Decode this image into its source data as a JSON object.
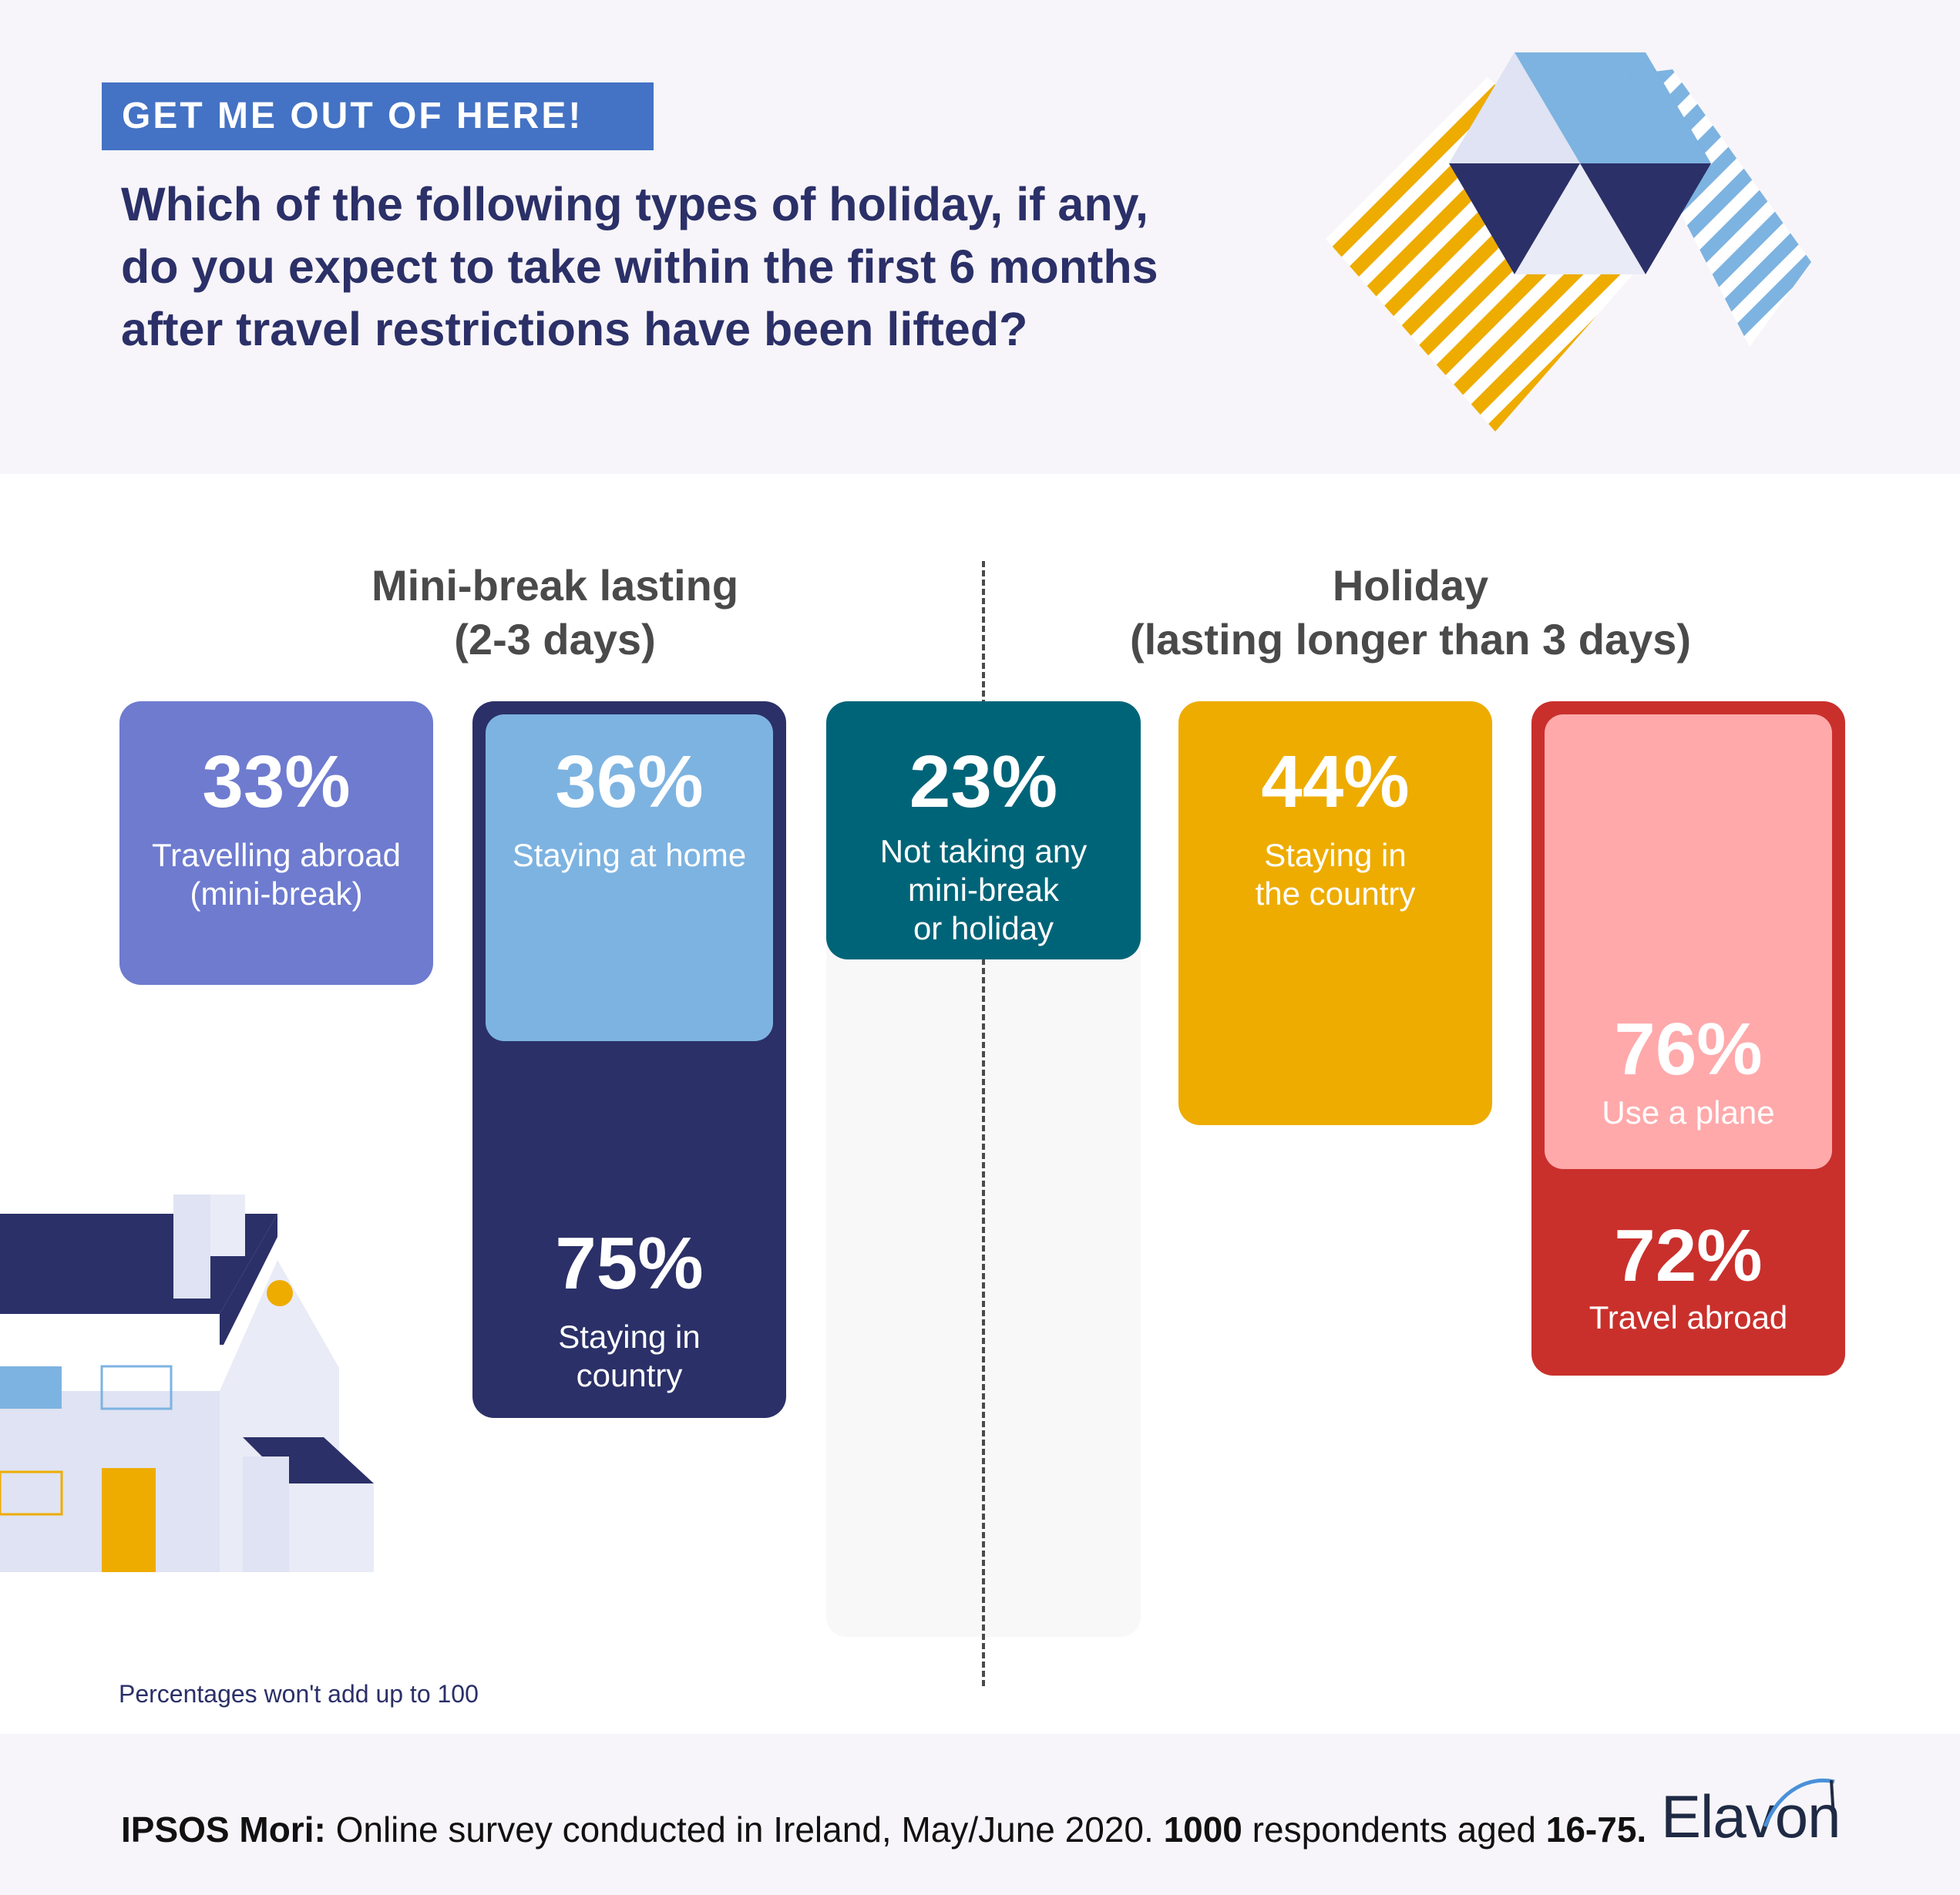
{
  "tag": "GET ME OUT OF HERE!",
  "question": "Which of the following types of holiday, if any, do you expect to take within the first 6 months after travel restrictions have been lifted?",
  "groups": {
    "mini_line1": "Mini-break lasting",
    "mini_line2": "(2-3 days)",
    "holiday_line1": "Holiday",
    "holiday_line2": "(lasting longer than 3 days)"
  },
  "cards": {
    "abroad_mini": {
      "pct": "33%",
      "line1": "Travelling abroad",
      "line2": "(mini-break)"
    },
    "home": {
      "pct": "36%",
      "line1": "Staying at home"
    },
    "country_mini": {
      "pct": "75%",
      "line1": "Staying in",
      "line2": "country"
    },
    "none": {
      "pct": "23%",
      "line1": "Not taking any",
      "line2": "mini-break",
      "line3": "or holiday"
    },
    "country_holiday": {
      "pct": "44%",
      "line1": "Staying in",
      "line2": "the country"
    },
    "plane": {
      "pct": "76%",
      "line1": "Use a plane"
    },
    "abroad_holiday": {
      "pct": "72%",
      "line1": "Travel abroad"
    }
  },
  "footnote": "Percentages won't add up to 100",
  "source": {
    "org": "IPSOS Mori:",
    "text1": " Online survey conducted in Ireland, May/June 2020. ",
    "count": "1000",
    "text2": " respondents aged ",
    "ages": "16-75."
  },
  "logo": "Elavon",
  "colors": {
    "navy": "#2b3068",
    "periwinkle": "#6e7bcf",
    "light_blue": "#7db3e1",
    "teal": "#006478",
    "amber": "#eeac00",
    "pink": "#ffa9ab",
    "red": "#c9302c",
    "tag_blue": "#4472c4"
  },
  "chart_data": {
    "type": "bar",
    "categories": [
      "Travelling abroad (mini-break)",
      "Staying at home",
      "Staying in country",
      "Not taking any mini-break or holiday",
      "Staying in the country",
      "Use a plane",
      "Travel abroad"
    ],
    "values": [
      33,
      36,
      75,
      23,
      44,
      76,
      72
    ],
    "groups": [
      "Mini-break lasting (2-3 days)",
      "Mini-break lasting (2-3 days)",
      "Mini-break lasting (2-3 days)",
      "",
      "Holiday (lasting longer than 3 days)",
      "Holiday (lasting longer than 3 days)",
      "Holiday (lasting longer than 3 days)"
    ],
    "unit": "%",
    "title": "Which of the following types of holiday, if any, do you expect to take within the first 6 months after travel restrictions have been lifted?"
  }
}
